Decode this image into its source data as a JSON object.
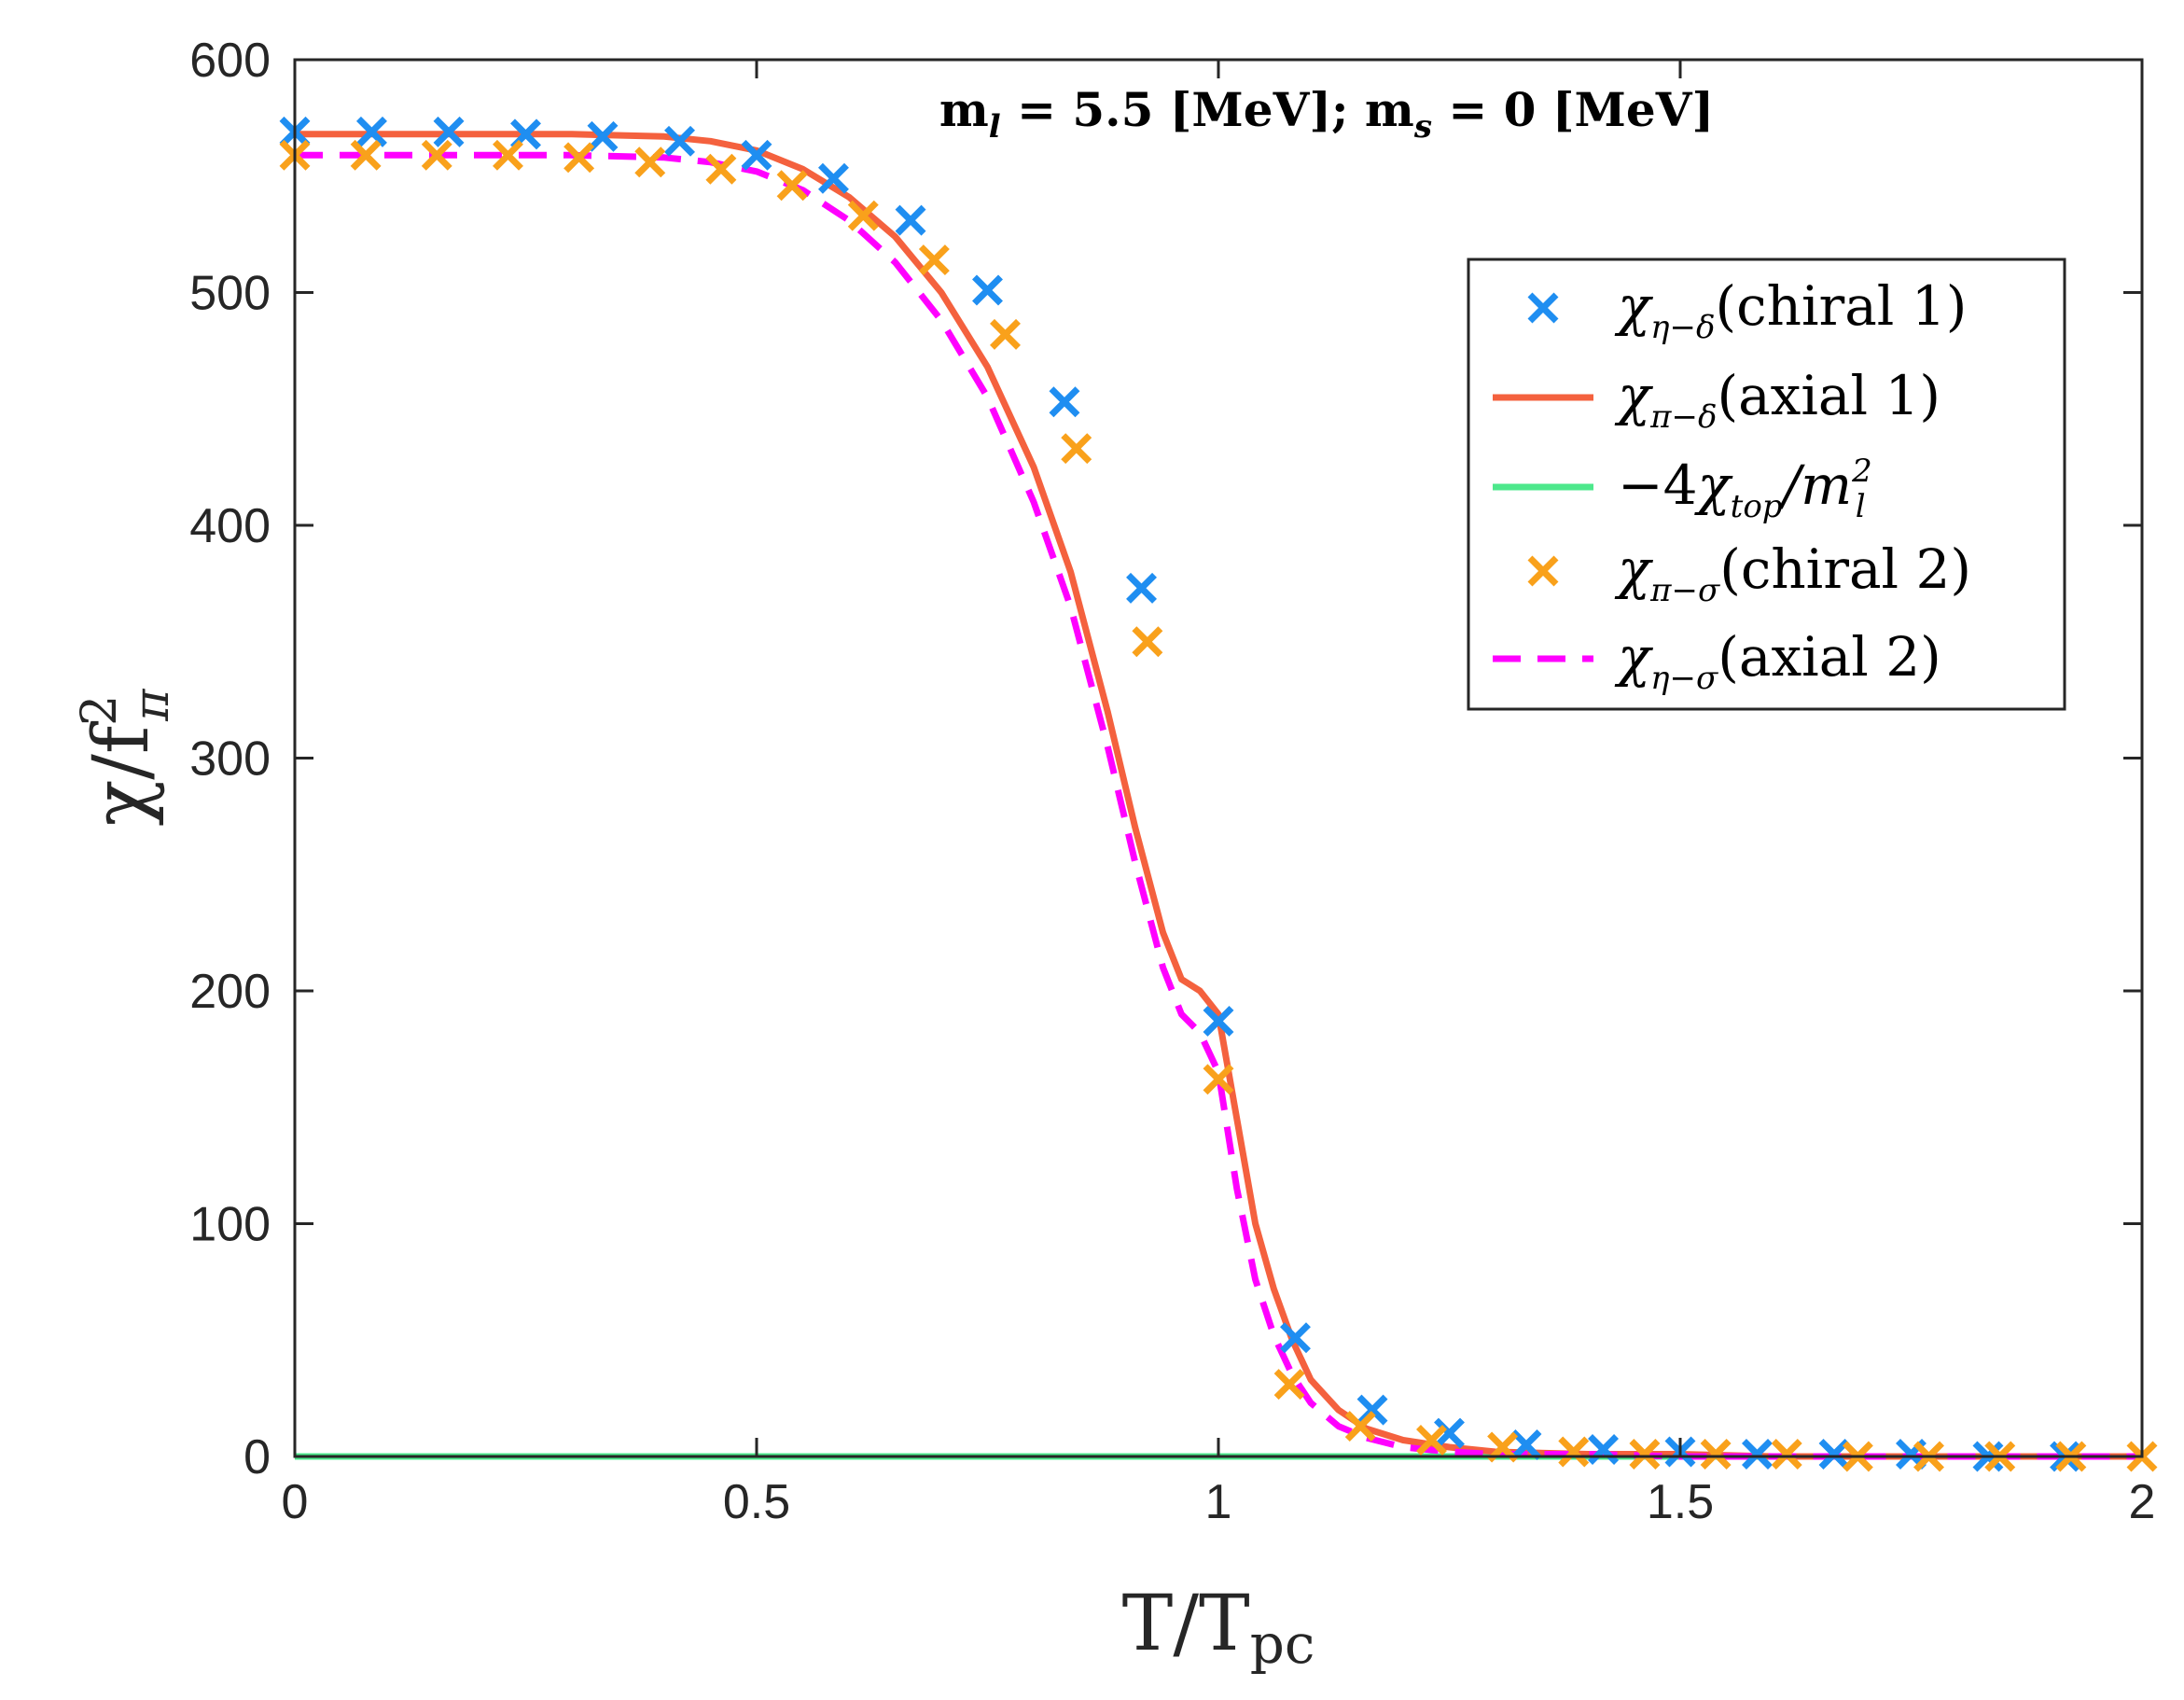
{
  "chart_data": {
    "type": "line",
    "title": "",
    "annotation": "m_l = 5.5 [MeV]; m_s = 0 [MeV]",
    "xlabel": "T/T_pc",
    "ylabel": "χ/f_π^2",
    "xlim": [
      0,
      2
    ],
    "ylim": [
      0,
      600
    ],
    "xticks": [
      0,
      0.5,
      1,
      1.5,
      2
    ],
    "xtick_labels": [
      "0",
      "0.5",
      "1",
      "1.5",
      "2"
    ],
    "yticks": [
      0,
      100,
      200,
      300,
      400,
      500,
      600
    ],
    "ytick_labels": [
      "0",
      "100",
      "200",
      "300",
      "400",
      "500",
      "600"
    ],
    "legend_position": "top-right",
    "series": [
      {
        "name": "χ_{η−δ}(chiral 1)",
        "style": "marker-x",
        "color": "#1f8ef1",
        "x": [
          0.0,
          0.0833,
          0.1667,
          0.25,
          0.3333,
          0.4167,
          0.5,
          0.5833,
          0.6667,
          0.75,
          0.8333,
          0.9167,
          1.0,
          1.0833,
          1.1667,
          1.25,
          1.3333,
          1.4167,
          1.5,
          1.5833,
          1.6667,
          1.75,
          1.8333,
          1.9167
        ],
        "y": [
          569,
          569,
          569,
          568,
          567,
          565,
          559,
          549,
          531,
          501,
          453,
          373,
          187,
          51,
          20,
          10,
          5,
          3,
          2,
          1,
          1,
          1,
          0,
          0
        ]
      },
      {
        "name": "χ_{π−δ}(axial 1)",
        "style": "solid",
        "color": "#f4613e",
        "x": [
          0.0,
          0.1,
          0.2,
          0.3,
          0.4,
          0.45,
          0.5,
          0.55,
          0.6,
          0.65,
          0.7,
          0.75,
          0.8,
          0.84,
          0.88,
          0.91,
          0.94,
          0.96,
          0.98,
          1.0,
          1.02,
          1.04,
          1.06,
          1.08,
          1.1,
          1.13,
          1.16,
          1.2,
          1.25,
          1.3,
          1.4,
          1.5,
          1.6,
          1.7,
          1.8,
          1.9,
          2.0
        ],
        "y": [
          568,
          568,
          568,
          568,
          567,
          565,
          561,
          553,
          541,
          524,
          500,
          468,
          425,
          380,
          320,
          270,
          225,
          205,
          200,
          190,
          145,
          100,
          72,
          50,
          33,
          20,
          12,
          7,
          4,
          2,
          1,
          1,
          0,
          0,
          0,
          0,
          0
        ]
      },
      {
        "name": "−4χ_{top}/m_l^2",
        "style": "solid",
        "color": "#4de88c",
        "x": [
          0,
          2
        ],
        "y": [
          0,
          0
        ]
      },
      {
        "name": "χ_{π−σ}(chiral 2)",
        "style": "marker-x",
        "color": "#f9a11b",
        "x": [
          0.0,
          0.0769,
          0.1538,
          0.2308,
          0.3077,
          0.3846,
          0.4615,
          0.5385,
          0.6154,
          0.6923,
          0.7692,
          0.8462,
          0.9231,
          1.0,
          1.0769,
          1.1538,
          1.2308,
          1.3077,
          1.3846,
          1.4615,
          1.5385,
          1.6154,
          1.6923,
          1.7692,
          1.8462,
          1.9231,
          2.0
        ],
        "y": [
          559,
          559,
          559,
          559,
          558,
          556,
          553,
          546,
          533,
          514,
          482,
          433,
          350,
          162,
          31,
          13,
          7,
          4,
          2,
          1,
          1,
          1,
          0,
          0,
          0,
          0,
          0
        ]
      },
      {
        "name": "χ_{η−σ}(axial 2)",
        "style": "dashed",
        "color": "#ff00ff",
        "x": [
          0.0,
          0.1,
          0.2,
          0.3,
          0.4,
          0.45,
          0.5,
          0.55,
          0.6,
          0.65,
          0.7,
          0.75,
          0.8,
          0.84,
          0.88,
          0.91,
          0.94,
          0.96,
          0.98,
          1.0,
          1.02,
          1.04,
          1.06,
          1.08,
          1.1,
          1.13,
          1.16,
          1.2,
          1.25,
          1.3,
          1.4,
          1.5,
          1.6,
          1.7,
          1.8,
          1.9,
          2.0
        ],
        "y": [
          559,
          559,
          559,
          559,
          558,
          556,
          552,
          544,
          531,
          513,
          488,
          455,
          410,
          365,
          305,
          255,
          210,
          190,
          182,
          165,
          115,
          76,
          52,
          35,
          23,
          13,
          8,
          4,
          2,
          1,
          1,
          0,
          0,
          0,
          0,
          0,
          0
        ]
      }
    ]
  }
}
